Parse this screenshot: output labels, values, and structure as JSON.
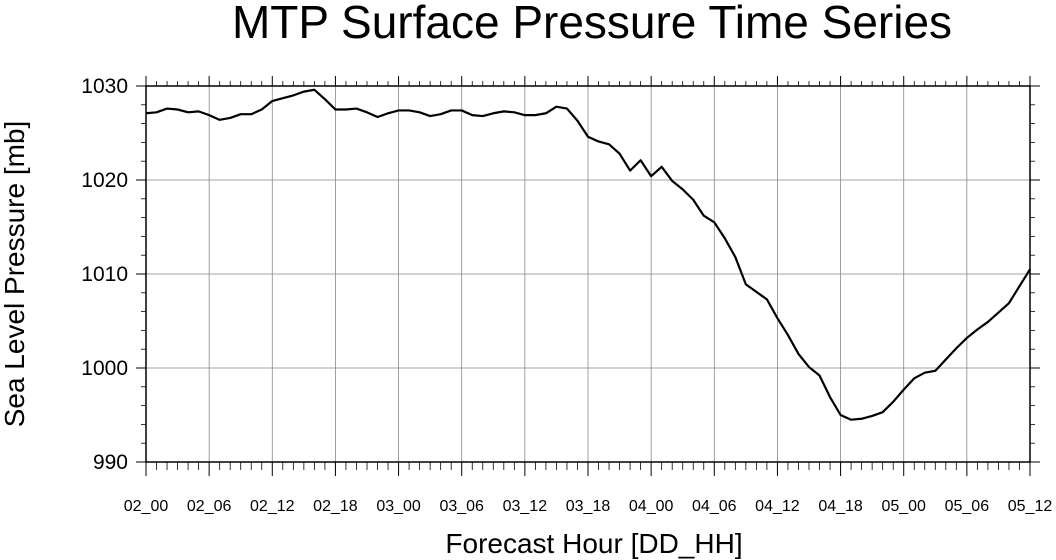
{
  "chart_data": {
    "type": "line",
    "title": "MTP Surface Pressure Time Series",
    "xlabel": "Forecast Hour [DD_HH]",
    "ylabel": "Sea Level Pressure [mb]",
    "ylim": [
      990,
      1030
    ],
    "yticks": [
      "990",
      "1000",
      "1010",
      "1020",
      "1030"
    ],
    "xticks": [
      "02_00",
      "02_06",
      "02_12",
      "02_18",
      "03_00",
      "03_06",
      "03_12",
      "03_18",
      "04_00",
      "04_06",
      "04_12",
      "04_18",
      "05_00",
      "05_06",
      "05_12"
    ],
    "x_start": "02_00",
    "x_step_hours": 1,
    "grid": true,
    "series": [
      {
        "values": [
          1027.1,
          1027.2,
          1027.6,
          1027.5,
          1027.2,
          1027.3,
          1026.9,
          1026.4,
          1026.6,
          1027.0,
          1027.0,
          1027.5,
          1028.4,
          1028.7,
          1029.0,
          1029.4,
          1029.6,
          1028.6,
          1027.5,
          1027.5,
          1027.6,
          1027.2,
          1026.7,
          1027.1,
          1027.4,
          1027.4,
          1027.2,
          1026.8,
          1027.0,
          1027.4,
          1027.4,
          1026.9,
          1026.8,
          1027.1,
          1027.3,
          1027.2,
          1026.9,
          1026.9,
          1027.1,
          1027.8,
          1027.6,
          1026.3,
          1024.6,
          1024.1,
          1023.8,
          1022.8,
          1021.0,
          1022.1,
          1020.4,
          1021.4,
          1019.9,
          1019.0,
          1017.9,
          1016.2,
          1015.5,
          1013.8,
          1011.8,
          1008.9,
          1008.1,
          1007.3,
          1005.3,
          1003.5,
          1001.5,
          1000.1,
          999.2,
          996.9,
          995.0,
          994.5,
          994.6,
          994.9,
          995.3,
          996.4,
          997.7,
          998.9,
          999.5,
          999.7,
          1000.9,
          1002.1,
          1003.2,
          1004.1,
          1004.9,
          1005.9,
          1006.9,
          1008.7,
          1010.5
        ]
      }
    ]
  }
}
